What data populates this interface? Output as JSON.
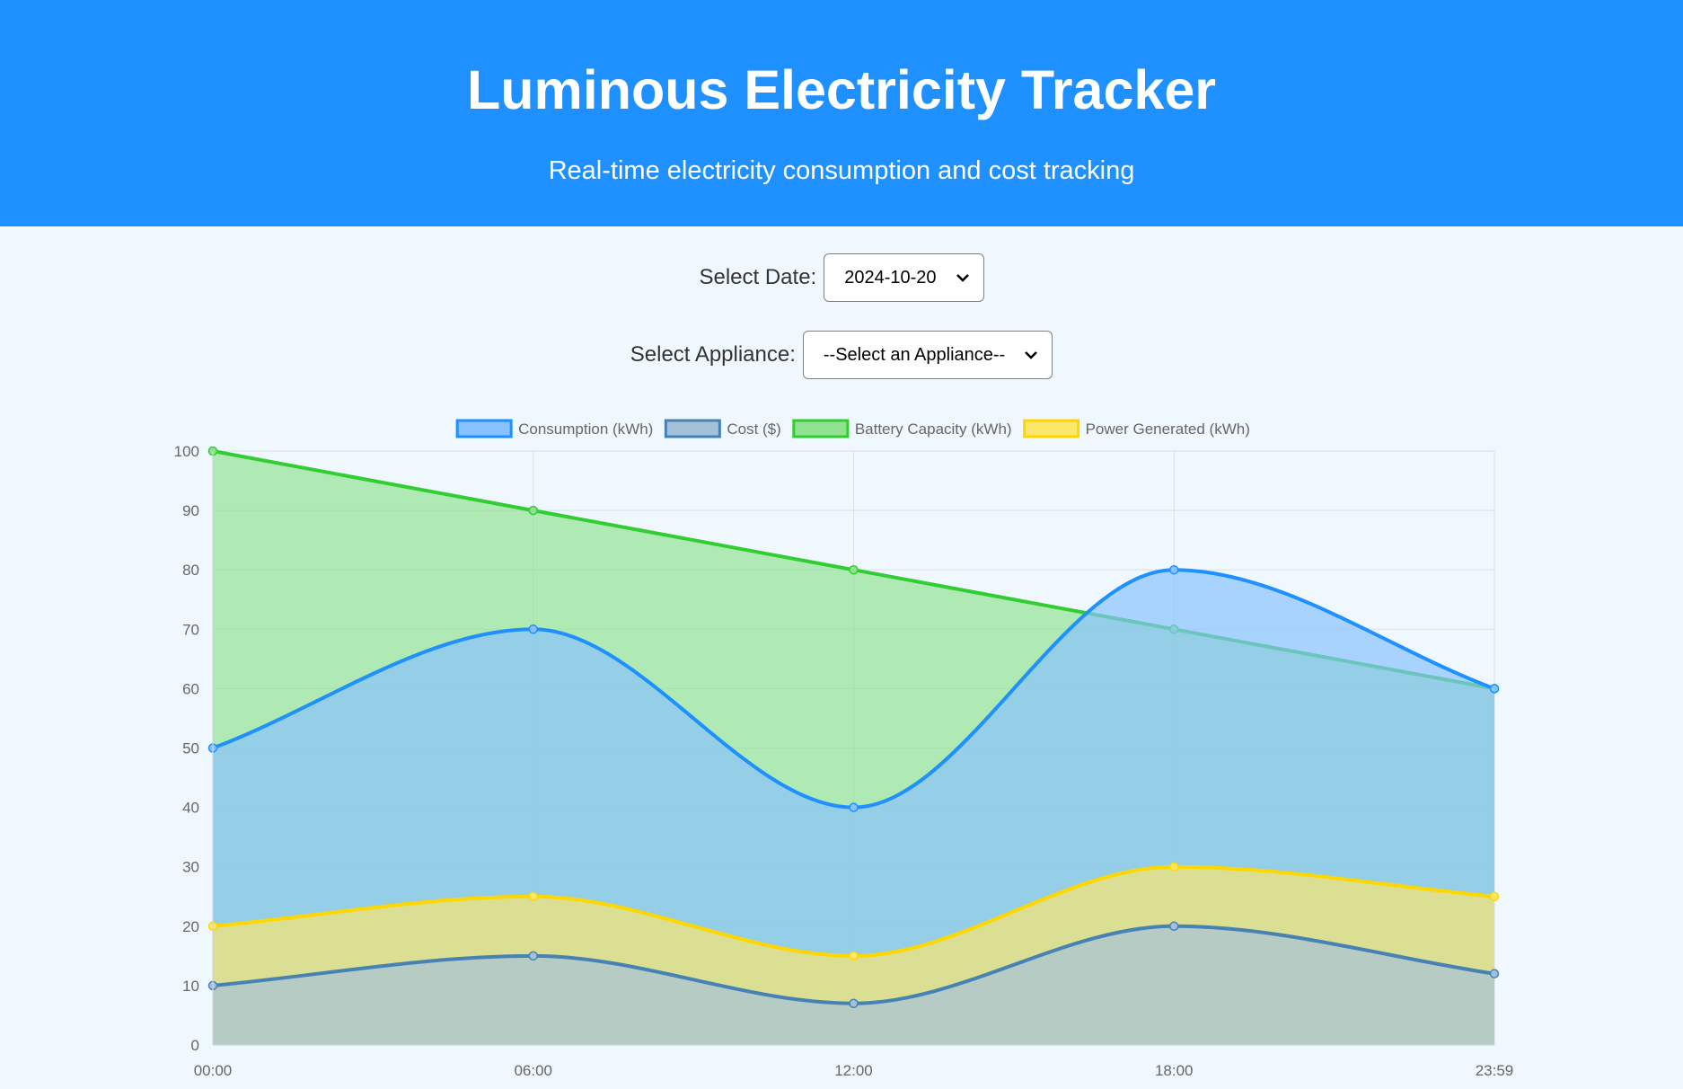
{
  "header": {
    "title": "Luminous Electricity Tracker",
    "subtitle": "Real-time electricity consumption and cost tracking"
  },
  "controls": {
    "date": {
      "label": "Select Date:",
      "value": "2024-10-20"
    },
    "appliance": {
      "label": "Select Appliance:",
      "value": "--Select an Appliance--"
    }
  },
  "chart_data": {
    "type": "area",
    "x": [
      "00:00",
      "06:00",
      "12:00",
      "18:00",
      "23:59"
    ],
    "ylim": [
      0,
      100
    ],
    "yticks": [
      0,
      10,
      20,
      30,
      40,
      50,
      60,
      70,
      80,
      90,
      100
    ],
    "grid": true,
    "legend_position": "top",
    "series": [
      {
        "name": "Consumption (kWh)",
        "values": [
          50,
          70,
          40,
          80,
          60
        ],
        "line_color": "#1e90ff",
        "fill_color": "#87c1ff",
        "smooth": true
      },
      {
        "name": "Cost ($)",
        "values": [
          10,
          15,
          7,
          20,
          12
        ],
        "line_color": "#4682b4",
        "fill_color": "#a3c1da",
        "smooth": true
      },
      {
        "name": "Battery Capacity (kWh)",
        "values": [
          100,
          90,
          80,
          70,
          60
        ],
        "line_color": "#32cd32",
        "fill_color": "#90e290",
        "smooth": false
      },
      {
        "name": "Power Generated (kWh)",
        "values": [
          20,
          25,
          15,
          30,
          25
        ],
        "line_color": "#ffd700",
        "fill_color": "#fde76b",
        "smooth": true
      }
    ]
  }
}
